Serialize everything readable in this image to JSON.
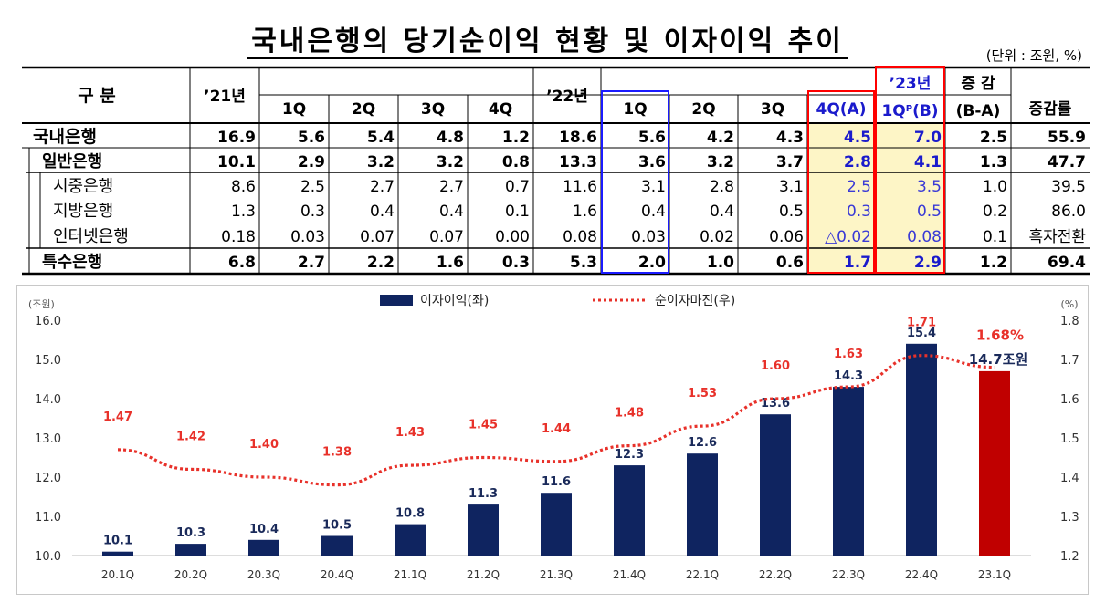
{
  "title": "국내은행의 당기순이익 현황 및 이자이익 추이",
  "unit": "(단위 : 조원, %)",
  "table": {
    "header": {
      "gubun": "구 분",
      "y21": "’21년",
      "q1": "1Q",
      "q2": "2Q",
      "q3": "3Q",
      "q4": "4Q",
      "y22": "’22년",
      "q22_1": "1Q",
      "q22_2": "2Q",
      "q22_3": "3Q",
      "q22_4": "4Q(A)",
      "y23": "’23년",
      "q23_1": "1Q",
      "q23_sup": "P",
      "q23_b": "(B)",
      "change_top": "증 감",
      "change_bottom": "(B-A)",
      "rate": "증감률"
    },
    "rows": [
      {
        "label": "국내은행",
        "v": [
          "16.9",
          "5.6",
          "5.4",
          "4.8",
          "1.2",
          "18.6",
          "5.6",
          "4.2",
          "4.3",
          "4.5",
          "7.0",
          "2.5",
          "55.9"
        ]
      },
      {
        "label": "일반은행",
        "v": [
          "10.1",
          "2.9",
          "3.2",
          "3.2",
          "0.8",
          "13.3",
          "3.6",
          "3.2",
          "3.7",
          "2.8",
          "4.1",
          "1.3",
          "47.7"
        ]
      },
      {
        "label": "시중은행",
        "v": [
          "8.6",
          "2.5",
          "2.7",
          "2.7",
          "0.7",
          "11.6",
          "3.1",
          "2.8",
          "3.1",
          "2.5",
          "3.5",
          "1.0",
          "39.5"
        ]
      },
      {
        "label": "지방은행",
        "v": [
          "1.3",
          "0.3",
          "0.4",
          "0.4",
          "0.1",
          "1.6",
          "0.4",
          "0.4",
          "0.5",
          "0.3",
          "0.5",
          "0.2",
          "86.0"
        ]
      },
      {
        "label": "인터넷은행",
        "v": [
          "0.18",
          "0.03",
          "0.07",
          "0.07",
          "0.00",
          "0.08",
          "0.03",
          "0.02",
          "0.06",
          "△0.02",
          "0.08",
          "0.1",
          "흑자전환"
        ]
      },
      {
        "label": "특수은행",
        "v": [
          "6.8",
          "2.7",
          "2.2",
          "1.6",
          "0.3",
          "5.3",
          "2.0",
          "1.0",
          "0.6",
          "1.7",
          "2.9",
          "1.2",
          "69.4"
        ]
      }
    ]
  },
  "colors": {
    "navy": "#0f2460",
    "red": "#c00000",
    "dotted": "#e8312a",
    "highlight": "#fdf5c6",
    "blue_box": "#1a1aff",
    "red_box": "#ff0000"
  },
  "chart_data": {
    "type": "bar",
    "categories": [
      "20.1Q",
      "20.2Q",
      "20.3Q",
      "20.4Q",
      "21.1Q",
      "21.2Q",
      "21.3Q",
      "21.4Q",
      "22.1Q",
      "22.2Q",
      "22.3Q",
      "22.4Q",
      "23.1Q"
    ],
    "series": [
      {
        "name": "이자이익(좌)",
        "type": "bar",
        "values": [
          10.1,
          10.3,
          10.4,
          10.5,
          10.8,
          11.3,
          11.6,
          12.3,
          12.6,
          13.6,
          14.3,
          15.4,
          14.7
        ]
      },
      {
        "name": "순이자마진(우)",
        "type": "line",
        "values": [
          1.47,
          1.42,
          1.4,
          1.38,
          1.43,
          1.45,
          1.44,
          1.48,
          1.53,
          1.6,
          1.63,
          1.71,
          1.68
        ]
      }
    ],
    "left_axis": {
      "label": "(조원)",
      "ticks": [
        "10.0",
        "11.0",
        "12.0",
        "13.0",
        "14.0",
        "15.0",
        "16.0"
      ],
      "ylim": [
        10,
        16
      ]
    },
    "right_axis": {
      "label": "(%)",
      "ticks": [
        "1.2",
        "1.3",
        "1.4",
        "1.5",
        "1.6",
        "1.7",
        "1.8"
      ],
      "ylim": [
        1.2,
        1.8
      ]
    },
    "bar_labels": [
      "10.1",
      "10.3",
      "10.4",
      "10.5",
      "10.8",
      "11.3",
      "11.6",
      "12.3",
      "12.6",
      "13.6",
      "14.3",
      "15.4",
      "14.7조원"
    ],
    "line_labels": [
      "1.47",
      "1.42",
      "1.40",
      "1.38",
      "1.43",
      "1.45",
      "1.44",
      "1.48",
      "1.53",
      "1.60",
      "1.63",
      "1.71",
      "1.68%"
    ],
    "legend": [
      "이자이익(좌)",
      "순이자마진(우)"
    ]
  }
}
